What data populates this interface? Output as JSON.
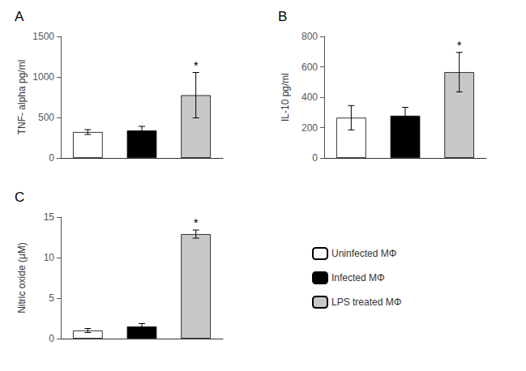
{
  "chart_data": [
    {
      "type": "bar",
      "title": "A",
      "ylabel": "TNF- alpha pg/ml",
      "categories": [
        null,
        null,
        null
      ],
      "series": [
        {
          "name": "Uninfected MΦ",
          "color": "white",
          "values": [
            320,
            null,
            null
          ],
          "errors": [
            30,
            null,
            null
          ]
        },
        {
          "name": "Infected MΦ",
          "color": "black",
          "values": [
            null,
            340,
            null
          ],
          "errors": [
            null,
            50,
            null
          ]
        },
        {
          "name": "LPS treated MΦ",
          "color": "#c8c8c8",
          "values": [
            null,
            null,
            775
          ],
          "errors": [
            null,
            null,
            280
          ]
        }
      ],
      "annotations": [
        {
          "text": "*",
          "index": 2
        }
      ],
      "ylim": [
        0,
        1500
      ],
      "yticks": [
        0,
        500,
        1000,
        1500
      ],
      "grid": false,
      "tick_labels": "y"
    },
    {
      "type": "bar",
      "title": "B",
      "ylabel": "IL-10 pg/ml",
      "categories": [
        null,
        null,
        null
      ],
      "series": [
        {
          "name": "Uninfected MΦ",
          "color": "white",
          "values": [
            265,
            null,
            null
          ],
          "errors": [
            80,
            null,
            null
          ]
        },
        {
          "name": "Infected MΦ",
          "color": "black",
          "values": [
            null,
            278,
            null
          ],
          "errors": [
            null,
            55,
            null
          ]
        },
        {
          "name": "LPS treated MΦ",
          "color": "#c8c8c8",
          "values": [
            null,
            null,
            565
          ],
          "errors": [
            null,
            null,
            130
          ]
        }
      ],
      "annotations": [
        {
          "text": "*",
          "index": 2
        }
      ],
      "ylim": [
        0,
        800
      ],
      "yticks": [
        0,
        200,
        400,
        600,
        800
      ],
      "grid": false,
      "tick_labels": "y"
    },
    {
      "type": "bar",
      "title": "C",
      "ylabel": "Nitric oxide (μM)",
      "categories": [
        null,
        null,
        null
      ],
      "series": [
        {
          "name": "Uninfected MΦ",
          "color": "white",
          "values": [
            1.0,
            null,
            null
          ],
          "errors": [
            0.25,
            null,
            null
          ]
        },
        {
          "name": "Infected MΦ",
          "color": "black",
          "values": [
            null,
            1.5,
            null
          ],
          "errors": [
            null,
            0.35,
            null
          ]
        },
        {
          "name": "LPS treated MΦ",
          "color": "#c8c8c8",
          "values": [
            null,
            null,
            12.9
          ],
          "errors": [
            null,
            null,
            0.5
          ]
        }
      ],
      "annotations": [
        {
          "text": "*",
          "index": 2
        }
      ],
      "ylim": [
        0,
        15
      ],
      "yticks": [
        0,
        5,
        10,
        15
      ],
      "grid": false,
      "tick_labels": "y",
      "legend": "lower right"
    }
  ]
}
